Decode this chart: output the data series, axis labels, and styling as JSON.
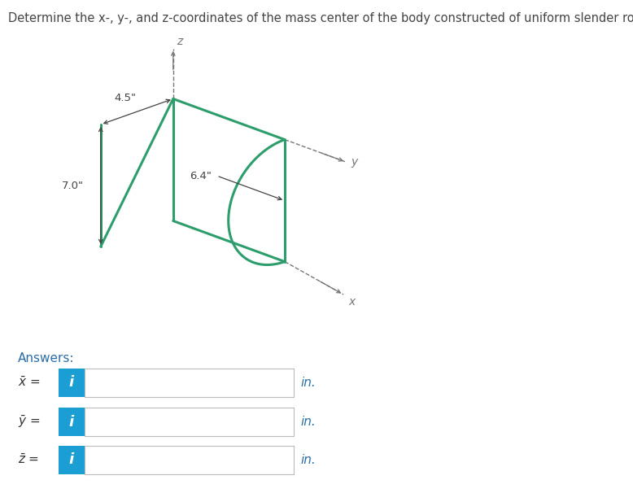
{
  "title": "Determine the x-, y-, and z-coordinates of the mass center of the body constructed of uniform slender rod.",
  "title_color": "#444444",
  "title_fontsize": 10.5,
  "fig_bg": "#ffffff",
  "rod_color": "#2d9e6b",
  "rod_linewidth": 2.2,
  "dim_color": "#444444",
  "dashed_color": "#777777",
  "dim_45": "4.5\"",
  "dim_70": "7.0\"",
  "dim_64": "6.4\"",
  "answers_label": "Answers:",
  "answers_color": "#2c6da4",
  "unit_label": "in.",
  "unit_color": "#2c6da4",
  "box_blue": "#1b9ed4",
  "box_border": "#bbbbbb",
  "answer_row_labels": [
    "$\\bar{x}$ =",
    "$\\bar{y}$ =",
    "$\\bar{z}$ ="
  ]
}
